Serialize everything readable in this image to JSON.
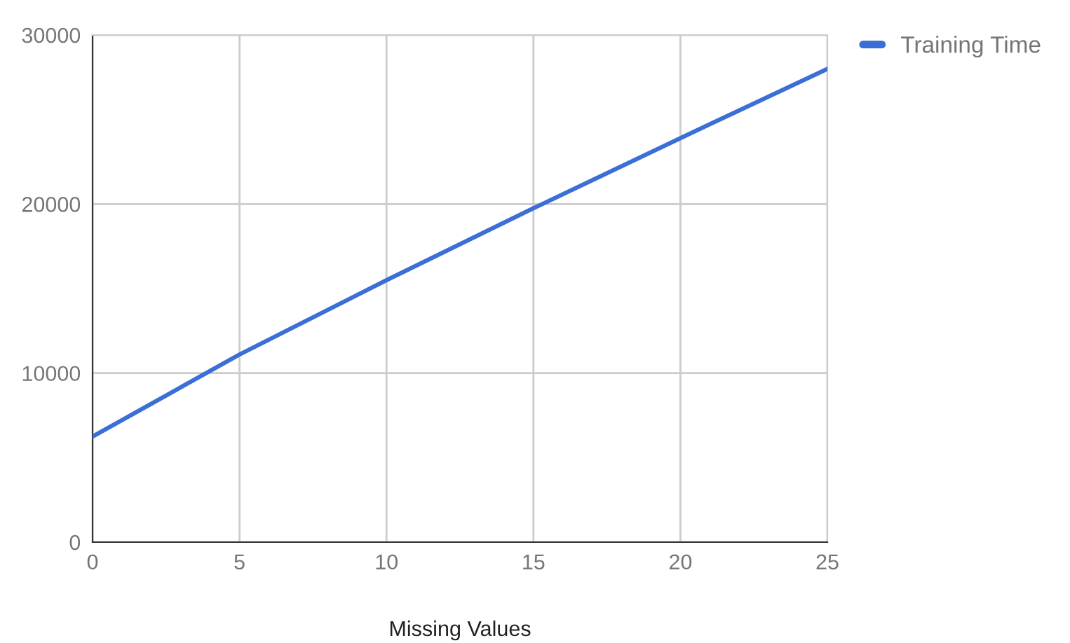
{
  "chart_data": {
    "type": "line",
    "xlabel": "Missing Values",
    "x": [
      0,
      5,
      10,
      15,
      20,
      25
    ],
    "series": [
      {
        "name": "Training Time",
        "color": "#3c6fd6",
        "values": [
          6250,
          11100,
          15500,
          19750,
          23900,
          28000
        ]
      }
    ],
    "xlim": [
      0,
      25
    ],
    "xticks": [
      0,
      5,
      10,
      15,
      20,
      25
    ],
    "ylim": [
      0,
      30000
    ],
    "yticks": [
      0,
      10000,
      20000,
      30000
    ],
    "grid": true,
    "legend": "top right",
    "marker": "none",
    "line_style": "solid"
  }
}
